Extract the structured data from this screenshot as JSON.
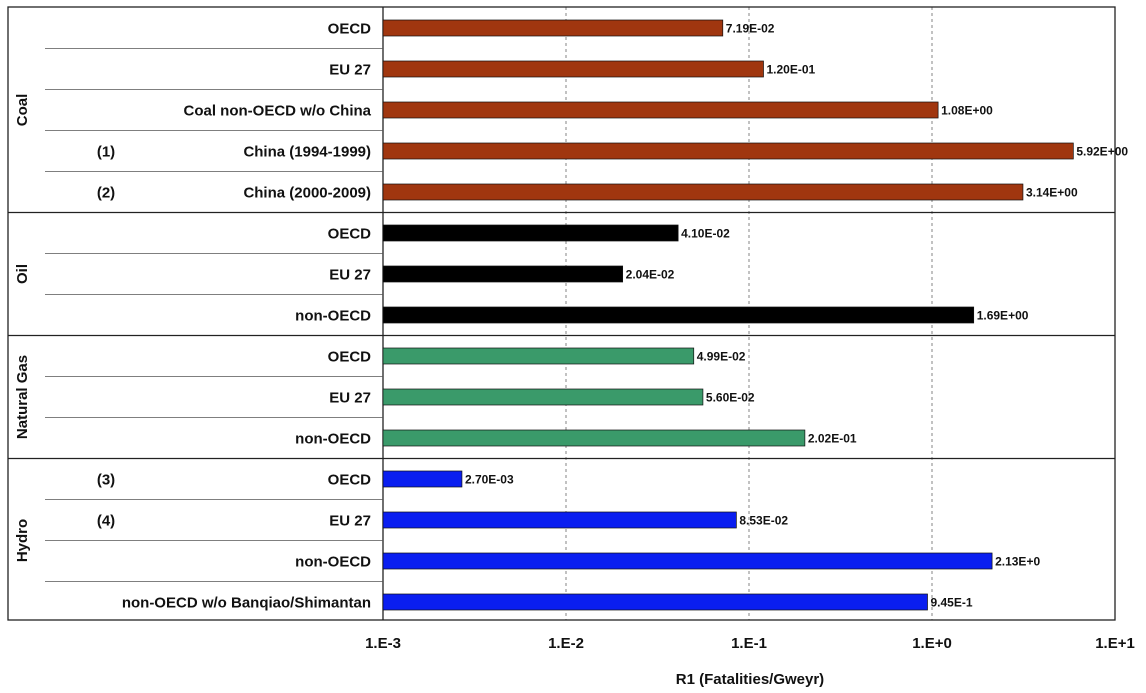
{
  "chart_data": {
    "type": "bar",
    "orientation": "horizontal",
    "x_scale": "log",
    "xlim": [
      0.001,
      10
    ],
    "xlabel": "R1 (Fatalities/Gweyr)",
    "x_ticks": [
      "1.E-3",
      "1.E-2",
      "1.E-1",
      "1.E+0",
      "1.E+1"
    ],
    "grid": "vertical dashed at decades",
    "groups": [
      {
        "name": "Coal",
        "color": "#a0360f",
        "rows": [
          {
            "label": "OECD",
            "note": "",
            "value": 0.0719,
            "value_label": "7.19E-02"
          },
          {
            "label": "EU 27",
            "note": "",
            "value": 0.12,
            "value_label": "1.20E-01"
          },
          {
            "label": "Coal non-OECD w/o China",
            "note": "",
            "value": 1.08,
            "value_label": "1.08E+00"
          },
          {
            "label": "China (1994-1999)",
            "note": "(1)",
            "value": 5.92,
            "value_label": "5.92E+00"
          },
          {
            "label": "China (2000-2009)",
            "note": "(2)",
            "value": 3.14,
            "value_label": "3.14E+00"
          }
        ]
      },
      {
        "name": "Oil",
        "color": "#000000",
        "rows": [
          {
            "label": "OECD",
            "note": "",
            "value": 0.041,
            "value_label": "4.10E-02"
          },
          {
            "label": "EU 27",
            "note": "",
            "value": 0.0204,
            "value_label": "2.04E-02"
          },
          {
            "label": "non-OECD",
            "note": "",
            "value": 1.69,
            "value_label": "1.69E+00"
          }
        ]
      },
      {
        "name": "Natural Gas",
        "color": "#3a9a6a",
        "rows": [
          {
            "label": "OECD",
            "note": "",
            "value": 0.0499,
            "value_label": "4.99E-02"
          },
          {
            "label": "EU 27",
            "note": "",
            "value": 0.056,
            "value_label": "5.60E-02"
          },
          {
            "label": "non-OECD",
            "note": "",
            "value": 0.202,
            "value_label": "2.02E-01"
          }
        ]
      },
      {
        "name": "Hydro",
        "color": "#0a1ef0",
        "rows": [
          {
            "label": "OECD",
            "note": "(3)",
            "value": 0.0027,
            "value_label": "2.70E-03"
          },
          {
            "label": "EU 27",
            "note": "(4)",
            "value": 0.0853,
            "value_label": "8.53E-02"
          },
          {
            "label": "non-OECD",
            "note": "",
            "value": 2.13,
            "value_label": "2.13E+0"
          },
          {
            "label": "non-OECD w/o Banqiao/Shimantan",
            "note": "",
            "value": 0.945,
            "value_label": "9.45E-1"
          }
        ]
      }
    ]
  }
}
